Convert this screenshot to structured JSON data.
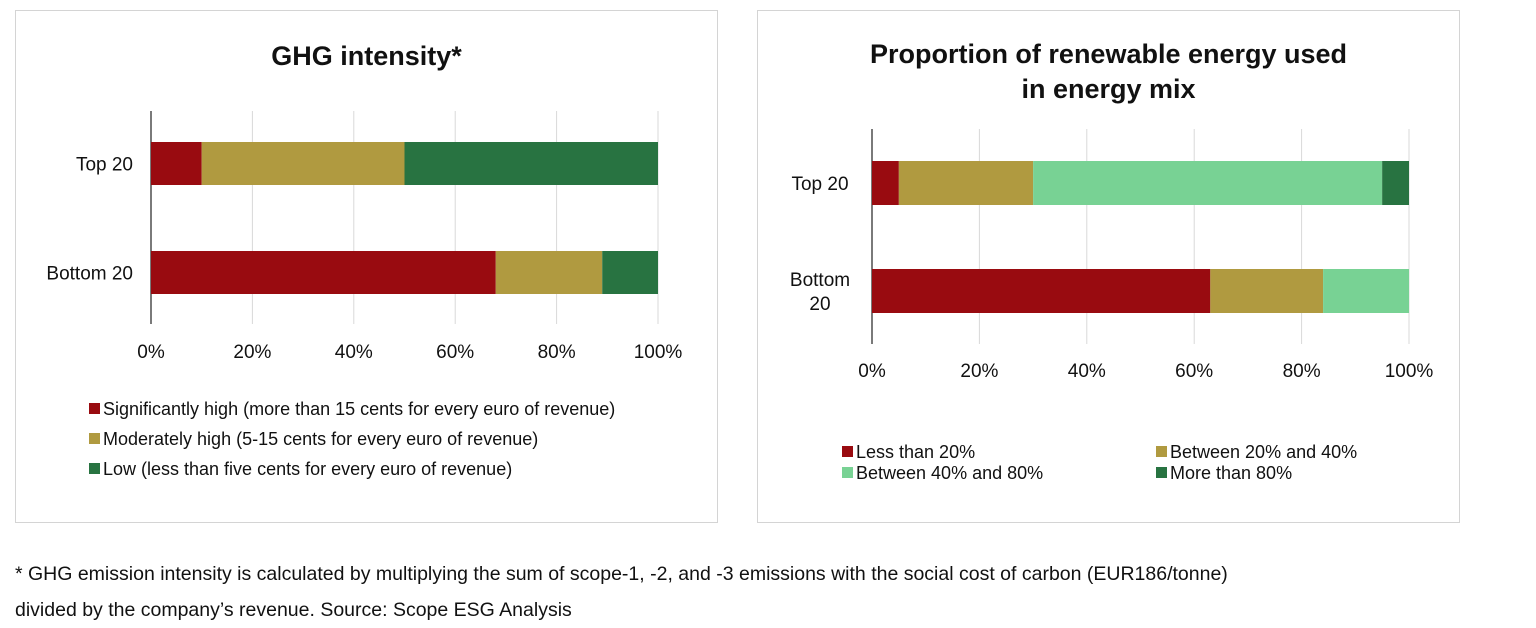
{
  "chart_data": [
    {
      "type": "bar",
      "orientation": "horizontal",
      "stacked": true,
      "title": "GHG intensity*",
      "categories": [
        "Top 20",
        "Bottom 20"
      ],
      "xlim": [
        0,
        100
      ],
      "x_ticks": [
        "0%",
        "20%",
        "40%",
        "60%",
        "80%",
        "100%"
      ],
      "grid": true,
      "legend_position": "bottom",
      "series": [
        {
          "name": "Significantly high (more than 15 cents for every euro of revenue)",
          "values": [
            10,
            68
          ],
          "color": "#990b10"
        },
        {
          "name": "Moderately high (5-15 cents for every euro of revenue)",
          "values": [
            40,
            21
          ],
          "color": "#b09a40"
        },
        {
          "name": "Low (less than five cents for every euro of revenue)",
          "values": [
            50,
            11
          ],
          "color": "#287341"
        }
      ]
    },
    {
      "type": "bar",
      "orientation": "horizontal",
      "stacked": true,
      "title": "Proportion of renewable energy used in energy mix",
      "title_lines": [
        "Proportion of renewable energy used",
        "in energy mix"
      ],
      "categories": [
        "Top 20",
        "Bottom 20"
      ],
      "category_lines": [
        [
          "Top 20"
        ],
        [
          "Bottom",
          "20"
        ]
      ],
      "xlim": [
        0,
        100
      ],
      "x_ticks": [
        "0%",
        "20%",
        "40%",
        "60%",
        "80%",
        "100%"
      ],
      "grid": true,
      "legend_position": "bottom",
      "series": [
        {
          "name": "Less than 20%",
          "values": [
            5,
            63
          ],
          "color": "#990b10"
        },
        {
          "name": "Between 20% and 40%",
          "values": [
            25,
            21
          ],
          "color": "#b09a40"
        },
        {
          "name": "Between 40% and 80%",
          "values": [
            65,
            16
          ],
          "color": "#78d294"
        },
        {
          "name": "More than 80%",
          "values": [
            5,
            0
          ],
          "color": "#287341"
        }
      ]
    }
  ],
  "footnote": {
    "line1": "* GHG emission intensity is calculated by multiplying the sum of scope-1, -2, and -3 emissions with the social cost of carbon (EUR186/tonne)",
    "line2": "divided by the company’s revenue. Source: Scope ESG Analysis"
  }
}
